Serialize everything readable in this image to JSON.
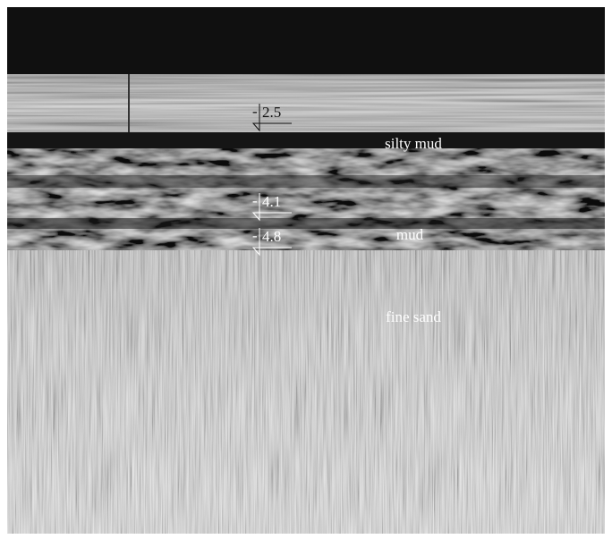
{
  "markers": [
    {
      "sign": "-",
      "depth": "2.5"
    },
    {
      "sign": "-",
      "depth": "4.1"
    },
    {
      "sign": "-",
      "depth": "4.8"
    }
  ],
  "layers": [
    "silty mud",
    "mud",
    "fine sand"
  ]
}
